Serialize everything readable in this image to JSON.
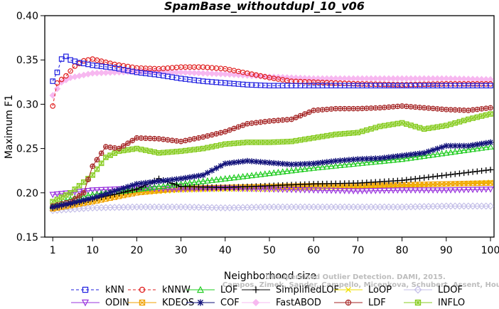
{
  "chart_data": {
    "type": "line",
    "title": "SpamBase_withoutdupl_10_v06",
    "xlabel": "Neighborhood size",
    "ylabel": "Maximum F1",
    "xlim": [
      0,
      100
    ],
    "ylim": [
      0.15,
      0.4
    ],
    "xticks": [
      1,
      10,
      20,
      30,
      40,
      50,
      60,
      70,
      80,
      90,
      100
    ],
    "yticks": [
      0.15,
      0.2,
      0.25,
      0.3,
      0.35,
      0.4
    ],
    "ytick_labels": [
      "0.15",
      "0.20",
      "0.25",
      "0.30",
      "0.35",
      "0.40"
    ],
    "grid": false,
    "legend_position": "bottom",
    "watermark": [
      "Campos, Zimek, Sander, Campello, Micenkova, Schubert, Assent, Houle",
      "Unsupervised Outlier Detection. DAMI, 2015."
    ],
    "series": [
      {
        "name": "kNN",
        "color": "#1f1fe0",
        "marker": "square",
        "dashed": true,
        "points": [
          [
            1,
            0.326
          ],
          [
            2,
            0.336
          ],
          [
            3,
            0.351
          ],
          [
            4,
            0.354
          ],
          [
            5,
            0.35
          ],
          [
            7,
            0.347
          ],
          [
            10,
            0.344
          ],
          [
            15,
            0.341
          ],
          [
            20,
            0.336
          ],
          [
            25,
            0.333
          ],
          [
            30,
            0.329
          ],
          [
            35,
            0.326
          ],
          [
            40,
            0.324
          ],
          [
            45,
            0.322
          ],
          [
            50,
            0.321
          ],
          [
            60,
            0.321
          ],
          [
            70,
            0.321
          ],
          [
            80,
            0.321
          ],
          [
            90,
            0.321
          ],
          [
            100,
            0.321
          ]
        ]
      },
      {
        "name": "kNNW",
        "color": "#e01f1f",
        "marker": "circle",
        "dashed": true,
        "points": [
          [
            1,
            0.298
          ],
          [
            2,
            0.324
          ],
          [
            3,
            0.328
          ],
          [
            4,
            0.332
          ],
          [
            6,
            0.343
          ],
          [
            8,
            0.349
          ],
          [
            10,
            0.351
          ],
          [
            15,
            0.345
          ],
          [
            20,
            0.341
          ],
          [
            25,
            0.34
          ],
          [
            30,
            0.342
          ],
          [
            35,
            0.342
          ],
          [
            40,
            0.34
          ],
          [
            45,
            0.335
          ],
          [
            50,
            0.33
          ],
          [
            55,
            0.326
          ],
          [
            60,
            0.325
          ],
          [
            70,
            0.323
          ],
          [
            80,
            0.322
          ],
          [
            90,
            0.323
          ],
          [
            100,
            0.323
          ]
        ]
      },
      {
        "name": "LOF",
        "color": "#22cc22",
        "marker": "triangle-up",
        "points": [
          [
            1,
            0.185
          ],
          [
            5,
            0.193
          ],
          [
            10,
            0.198
          ],
          [
            20,
            0.204
          ],
          [
            30,
            0.21
          ],
          [
            40,
            0.216
          ],
          [
            50,
            0.222
          ],
          [
            60,
            0.228
          ],
          [
            70,
            0.233
          ],
          [
            80,
            0.238
          ],
          [
            90,
            0.245
          ],
          [
            100,
            0.252
          ]
        ]
      },
      {
        "name": "SimplifiedLOF",
        "color": "#000000",
        "marker": "plus",
        "points": [
          [
            1,
            0.183
          ],
          [
            5,
            0.187
          ],
          [
            10,
            0.193
          ],
          [
            20,
            0.204
          ],
          [
            25,
            0.216
          ],
          [
            30,
            0.207
          ],
          [
            40,
            0.206
          ],
          [
            50,
            0.208
          ],
          [
            60,
            0.21
          ],
          [
            70,
            0.211
          ],
          [
            80,
            0.214
          ],
          [
            90,
            0.22
          ],
          [
            100,
            0.226
          ]
        ]
      },
      {
        "name": "LoOP",
        "color": "#f0e000",
        "marker": "x",
        "points": [
          [
            1,
            0.185
          ],
          [
            10,
            0.19
          ],
          [
            20,
            0.2
          ],
          [
            30,
            0.203
          ],
          [
            40,
            0.204
          ],
          [
            50,
            0.204
          ],
          [
            60,
            0.205
          ],
          [
            70,
            0.206
          ],
          [
            80,
            0.208
          ],
          [
            90,
            0.21
          ],
          [
            100,
            0.212
          ]
        ]
      },
      {
        "name": "LDOF",
        "color": "#c4bfe8",
        "marker": "diamond",
        "points": [
          [
            1,
            0.18
          ],
          [
            10,
            0.183
          ],
          [
            20,
            0.184
          ],
          [
            30,
            0.184
          ],
          [
            40,
            0.183
          ],
          [
            50,
            0.184
          ],
          [
            60,
            0.184
          ],
          [
            70,
            0.184
          ],
          [
            80,
            0.184
          ],
          [
            90,
            0.185
          ],
          [
            100,
            0.185
          ]
        ]
      },
      {
        "name": "ODIN",
        "color": "#9933dd",
        "marker": "triangle-down",
        "points": [
          [
            1,
            0.198
          ],
          [
            5,
            0.2
          ],
          [
            10,
            0.203
          ],
          [
            20,
            0.205
          ],
          [
            30,
            0.204
          ],
          [
            40,
            0.205
          ],
          [
            50,
            0.204
          ],
          [
            60,
            0.203
          ],
          [
            70,
            0.202
          ],
          [
            80,
            0.203
          ],
          [
            90,
            0.203
          ],
          [
            100,
            0.204
          ]
        ]
      },
      {
        "name": "KDEOS",
        "color": "#f0a000",
        "marker": "square-x",
        "points": [
          [
            1,
            0.182
          ],
          [
            10,
            0.19
          ],
          [
            20,
            0.2
          ],
          [
            30,
            0.205
          ],
          [
            40,
            0.206
          ],
          [
            50,
            0.207
          ],
          [
            60,
            0.208
          ],
          [
            70,
            0.208
          ],
          [
            80,
            0.209
          ],
          [
            90,
            0.21
          ],
          [
            100,
            0.211
          ]
        ]
      },
      {
        "name": "COF",
        "color": "#12127a",
        "marker": "asterisk",
        "points": [
          [
            1,
            0.184
          ],
          [
            5,
            0.188
          ],
          [
            10,
            0.194
          ],
          [
            20,
            0.21
          ],
          [
            30,
            0.216
          ],
          [
            35,
            0.22
          ],
          [
            40,
            0.233
          ],
          [
            45,
            0.236
          ],
          [
            50,
            0.234
          ],
          [
            55,
            0.232
          ],
          [
            60,
            0.233
          ],
          [
            65,
            0.236
          ],
          [
            70,
            0.238
          ],
          [
            75,
            0.239
          ],
          [
            80,
            0.242
          ],
          [
            85,
            0.245
          ],
          [
            90,
            0.253
          ],
          [
            95,
            0.253
          ],
          [
            100,
            0.257
          ]
        ]
      },
      {
        "name": "FastABOD",
        "color": "#f7b8f0",
        "marker": "diamond-filled",
        "points": [
          [
            1,
            0.31
          ],
          [
            3,
            0.325
          ],
          [
            5,
            0.33
          ],
          [
            8,
            0.333
          ],
          [
            10,
            0.335
          ],
          [
            20,
            0.337
          ],
          [
            30,
            0.336
          ],
          [
            40,
            0.334
          ],
          [
            50,
            0.331
          ],
          [
            60,
            0.329
          ],
          [
            70,
            0.329
          ],
          [
            80,
            0.329
          ],
          [
            90,
            0.329
          ],
          [
            100,
            0.328
          ]
        ]
      },
      {
        "name": "LDF",
        "color": "#a52525",
        "marker": "circle-plus",
        "points": [
          [
            1,
            0.185
          ],
          [
            5,
            0.19
          ],
          [
            8,
            0.2
          ],
          [
            10,
            0.23
          ],
          [
            13,
            0.252
          ],
          [
            16,
            0.25
          ],
          [
            20,
            0.262
          ],
          [
            25,
            0.261
          ],
          [
            30,
            0.258
          ],
          [
            35,
            0.263
          ],
          [
            40,
            0.269
          ],
          [
            45,
            0.278
          ],
          [
            50,
            0.281
          ],
          [
            55,
            0.283
          ],
          [
            60,
            0.293
          ],
          [
            65,
            0.295
          ],
          [
            70,
            0.295
          ],
          [
            75,
            0.296
          ],
          [
            80,
            0.298
          ],
          [
            85,
            0.296
          ],
          [
            90,
            0.294
          ],
          [
            95,
            0.293
          ],
          [
            100,
            0.296
          ]
        ]
      },
      {
        "name": "INFLO",
        "color": "#88cc22",
        "marker": "star-box",
        "points": [
          [
            1,
            0.19
          ],
          [
            5,
            0.2
          ],
          [
            10,
            0.22
          ],
          [
            13,
            0.24
          ],
          [
            16,
            0.247
          ],
          [
            20,
            0.25
          ],
          [
            25,
            0.245
          ],
          [
            30,
            0.247
          ],
          [
            35,
            0.25
          ],
          [
            40,
            0.255
          ],
          [
            45,
            0.257
          ],
          [
            50,
            0.257
          ],
          [
            55,
            0.258
          ],
          [
            60,
            0.262
          ],
          [
            65,
            0.266
          ],
          [
            70,
            0.268
          ],
          [
            75,
            0.275
          ],
          [
            80,
            0.279
          ],
          [
            85,
            0.272
          ],
          [
            90,
            0.276
          ],
          [
            95,
            0.283
          ],
          [
            100,
            0.289
          ]
        ]
      }
    ]
  }
}
